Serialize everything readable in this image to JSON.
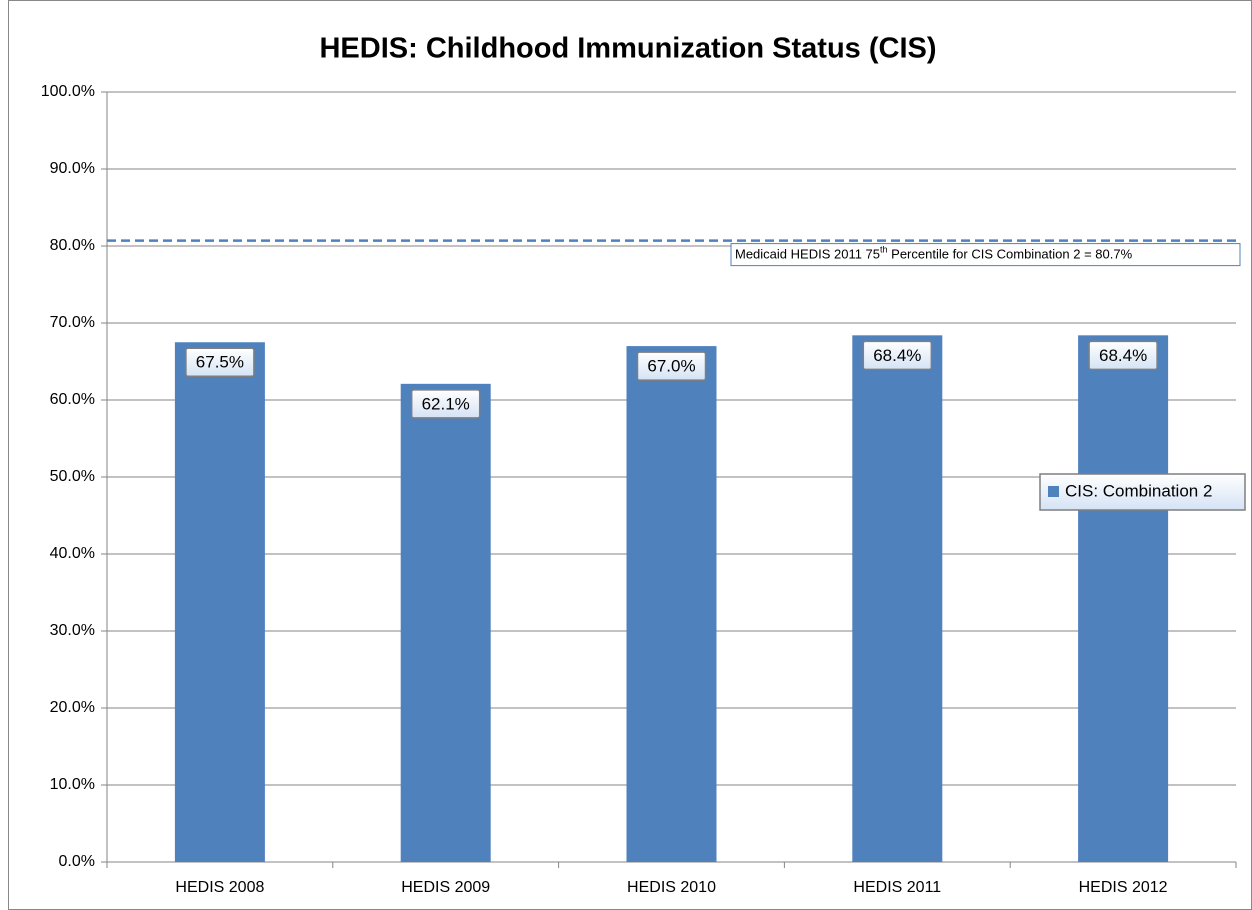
{
  "chart_data": {
    "type": "bar",
    "title": "HEDIS: Childhood Immunization Status (CIS)",
    "categories": [
      "HEDIS 2008",
      "HEDIS 2009",
      "HEDIS 2010",
      "HEDIS 2011",
      "HEDIS 2012"
    ],
    "series": [
      {
        "name": "CIS: Combination 2",
        "color": "#4f81bd",
        "values": [
          67.5,
          62.1,
          67.0,
          68.4,
          68.4
        ],
        "value_labels": [
          "67.5%",
          "62.1%",
          "67.0%",
          "68.4%",
          "68.4%"
        ]
      }
    ],
    "ylim": [
      0,
      100
    ],
    "yticks": [
      {
        "value": 0,
        "label": "0.0%"
      },
      {
        "value": 10,
        "label": "10.0%"
      },
      {
        "value": 20,
        "label": "20.0%"
      },
      {
        "value": 30,
        "label": "30.0%"
      },
      {
        "value": 40,
        "label": "40.0%"
      },
      {
        "value": 50,
        "label": "50.0%"
      },
      {
        "value": 60,
        "label": "60.0%"
      },
      {
        "value": 70,
        "label": "70.0%"
      },
      {
        "value": 80,
        "label": "80.0%"
      },
      {
        "value": 90,
        "label": "90.0%"
      },
      {
        "value": 100,
        "label": "100.0%"
      }
    ],
    "grid": true,
    "legend": "right",
    "reference_line": {
      "value": 80.7,
      "color": "#4f81bd",
      "style": "dashed",
      "label_parts": [
        "Medicaid HEDIS  2011 75",
        "th",
        " Percentile for CIS Combination  2 = 80.7%"
      ]
    }
  }
}
